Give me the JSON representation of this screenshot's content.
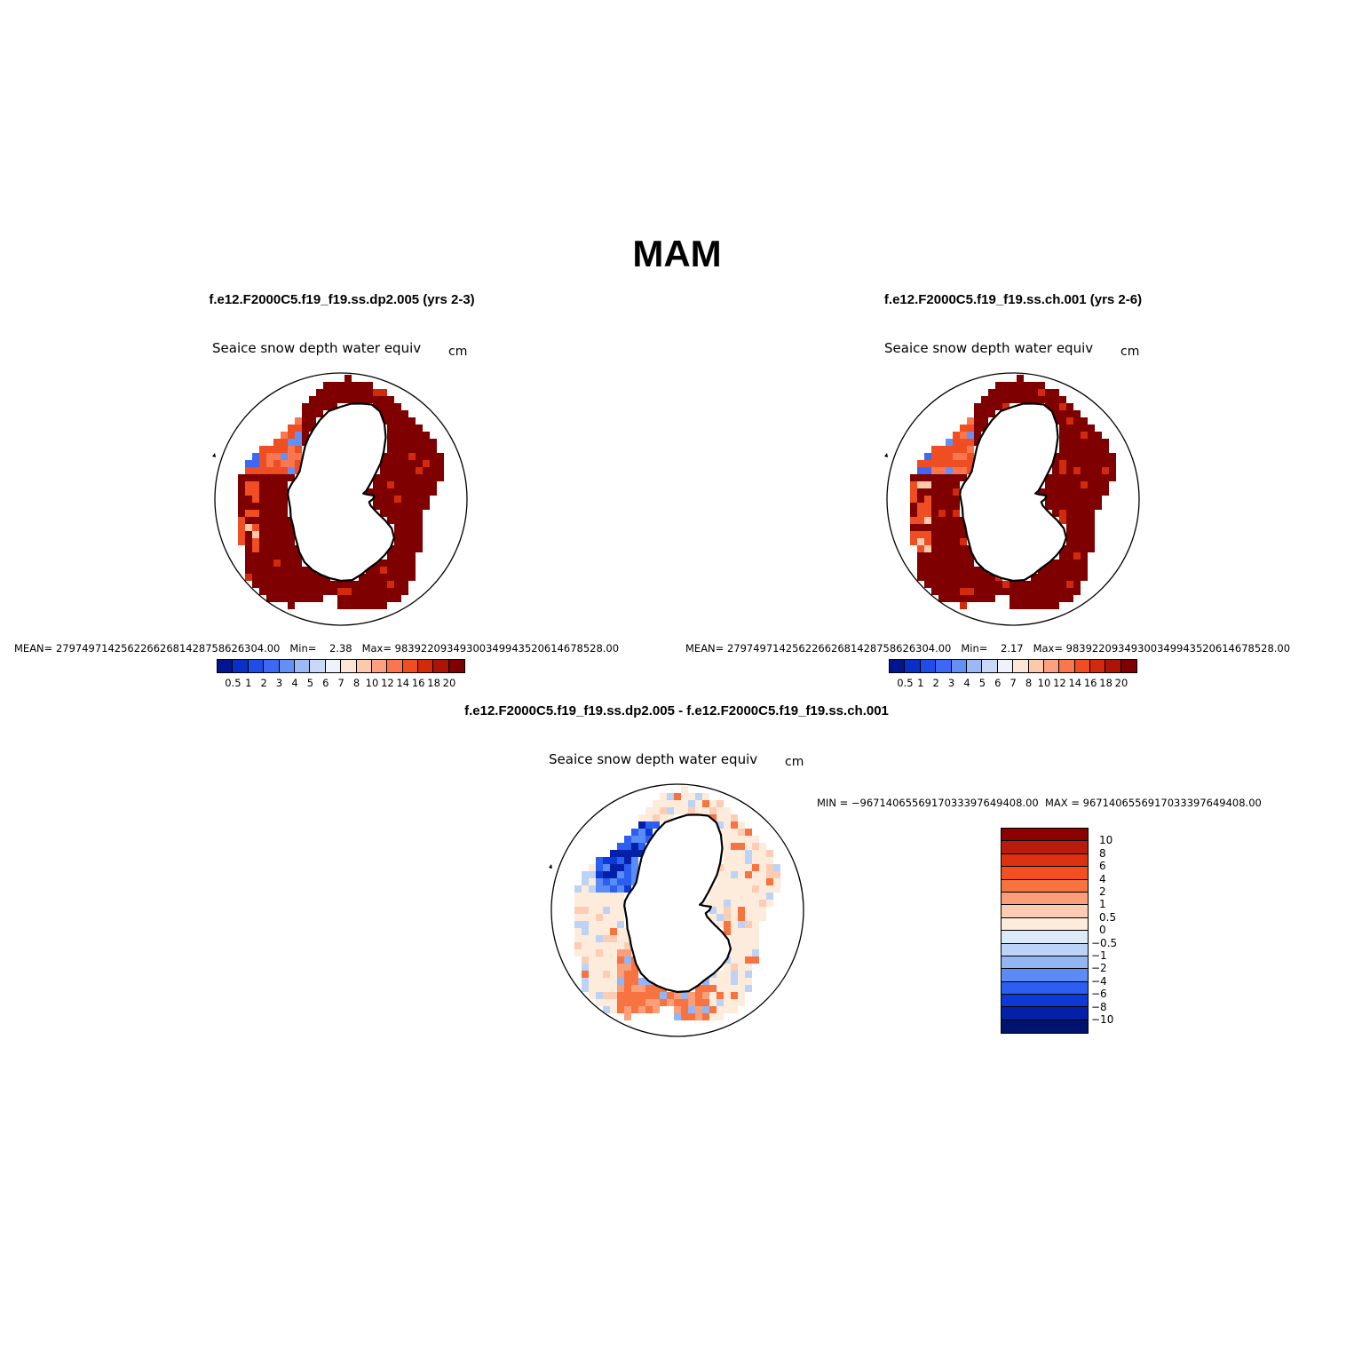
{
  "title": "MAM",
  "panels": [
    {
      "case": "f.e12.F2000C5.f19_f19.ss.dp2.005 (yrs 2-3)",
      "variable": "Seaice snow depth water equiv",
      "units": "cm",
      "stats": "MEAN= 2797497142562266268142875862630 4.00  Min=    2.38   Max= 983922093493003499435206146785 28.00",
      "stats_text": "MEAN= 279749714256226626814287586263 04.00  Min=    2.38   Max= 983922093493003499435206146785 28.00"
    },
    {
      "case": "f.e12.F2000C5.f19_f19.ss.ch.001 (yrs 2-6)",
      "variable": "Seaice snow depth water equiv",
      "units": "cm",
      "stats_text": "MEAN= 279749714256226626814287586263 04.00  Min=    2.17   Max= 983922093493003499435206146785 28.00"
    }
  ],
  "stats_left": "MEAN= 27974971425622662681428758626304.00   Min=    2.38   Max= 98392209349300349943520614678528.00",
  "stats_right": "MEAN= 27974971425622662681428758626304.00   Min=    2.17   Max= 98392209349300349943520614678528.00",
  "abs_colorbar": {
    "colors": [
      "#00158f",
      "#0a2fc6",
      "#1f4de8",
      "#3c68f5",
      "#6490f5",
      "#9bb8f7",
      "#c7d9f7",
      "#eef2fb",
      "#fde6d6",
      "#fcc9ad",
      "#fca080",
      "#f9764e",
      "#ee4e22",
      "#d22a0d",
      "#ae1406",
      "#7e0000"
    ],
    "labels": [
      "0.5",
      "1",
      "2",
      "3",
      "4",
      "5",
      "6",
      "7",
      "8",
      "10",
      "12",
      "14",
      "16",
      "18",
      "20"
    ]
  },
  "diff": {
    "case": "f.e12.F2000C5.f19_f19.ss.dp2.005 - f.e12.F2000C5.f19_f19.ss.ch.001",
    "variable": "Seaice snow depth water equiv",
    "units": "cm",
    "minmax": "MIN = −96714065569170333976494 08.00 MAX = 96714065569170333976494 08.00",
    "minmax_text": "MIN = −9671406556917033397649408.00  MAX = 9671406556917033397649408.00",
    "colors": [
      "#8b0000",
      "#b71c0c",
      "#dc3212",
      "#f44f21",
      "#f7733f",
      "#fb9e7a",
      "#fcccb4",
      "#fdebdc",
      "#dcebf7",
      "#bcd3f5",
      "#93b4f5",
      "#5b8bf4",
      "#2c5ef0",
      "#0d3ad6",
      "#0520a8",
      "#00136f"
    ],
    "labels": [
      "10",
      "8",
      "6",
      "4",
      "2",
      "1",
      "0.5",
      "0",
      "−0.5",
      "−1",
      "−2",
      "−4",
      "−6",
      "−8",
      "−10"
    ]
  }
}
